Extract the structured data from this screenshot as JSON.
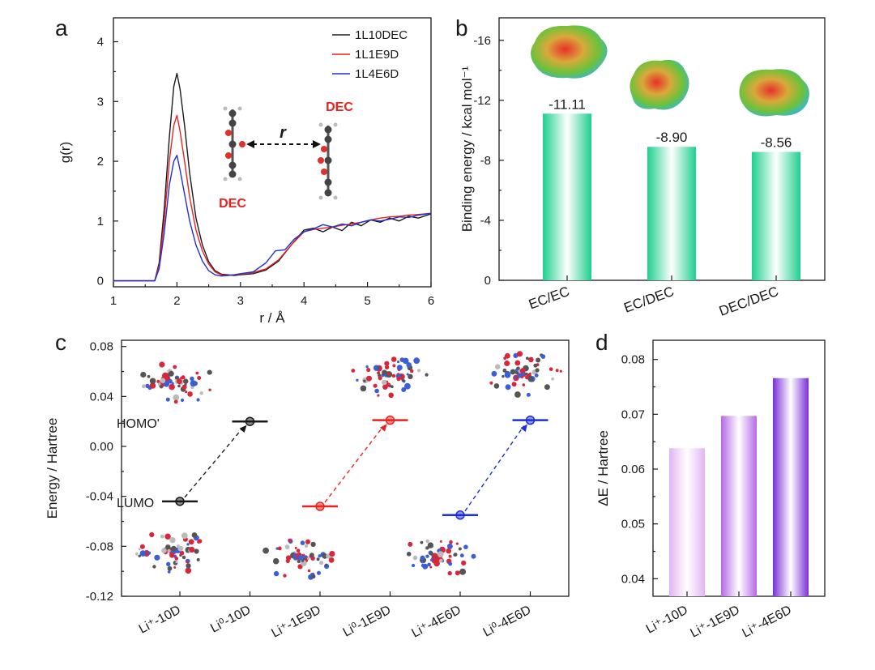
{
  "panels": {
    "a": "a",
    "b": "b",
    "c": "c",
    "d": "d"
  },
  "chart_data": [
    {
      "panel": "a",
      "type": "line",
      "xlabel": "r / Å",
      "ylabel": "g(r)",
      "xlim": [
        1,
        6
      ],
      "ylim": [
        -0.1,
        4.4
      ],
      "xticks": [
        "1",
        "2",
        "3",
        "4",
        "5",
        "6"
      ],
      "yticks": [
        "0",
        "1",
        "2",
        "3",
        "4"
      ],
      "legend_position": "top-right",
      "annotations": {
        "mol_left": "DEC",
        "mol_right": "DEC",
        "r_label": "r"
      },
      "series": [
        {
          "name": "1L10DEC",
          "color": "#1a1a1a",
          "x": [
            1.0,
            1.65,
            1.72,
            1.8,
            1.88,
            1.95,
            2.0,
            2.05,
            2.12,
            2.2,
            2.3,
            2.4,
            2.5,
            2.6,
            2.7,
            2.8,
            2.9,
            3.0,
            3.2,
            3.4,
            3.6,
            3.8,
            4.0,
            4.15,
            4.3,
            4.45,
            4.6,
            4.75,
            4.9,
            5.05,
            5.2,
            5.35,
            5.5,
            5.65,
            5.8,
            6.0
          ],
          "y": [
            0.0,
            0.0,
            0.3,
            1.2,
            2.4,
            3.25,
            3.47,
            3.2,
            2.6,
            1.8,
            1.05,
            0.6,
            0.32,
            0.17,
            0.11,
            0.1,
            0.09,
            0.1,
            0.12,
            0.18,
            0.33,
            0.6,
            0.85,
            0.88,
            0.82,
            0.9,
            0.84,
            0.98,
            0.92,
            1.02,
            0.98,
            1.05,
            1.0,
            1.08,
            1.05,
            1.12
          ]
        },
        {
          "name": "1L1E9D",
          "color": "#e8231f",
          "x": [
            1.0,
            1.65,
            1.72,
            1.8,
            1.88,
            1.95,
            2.0,
            2.05,
            2.12,
            2.2,
            2.3,
            2.4,
            2.5,
            2.6,
            2.7,
            2.8,
            2.9,
            3.0,
            3.2,
            3.4,
            3.6,
            3.8,
            4.0,
            4.15,
            4.3,
            4.45,
            4.6,
            4.75,
            4.9,
            5.05,
            5.2,
            5.35,
            5.5,
            5.65,
            5.8,
            6.0
          ],
          "y": [
            0.0,
            0.0,
            0.25,
            1.0,
            2.0,
            2.6,
            2.77,
            2.5,
            2.0,
            1.4,
            0.85,
            0.5,
            0.28,
            0.15,
            0.1,
            0.09,
            0.1,
            0.11,
            0.14,
            0.2,
            0.35,
            0.6,
            0.82,
            0.86,
            0.88,
            0.9,
            0.93,
            0.95,
            0.98,
            1.02,
            1.05,
            1.07,
            1.08,
            1.1,
            1.11,
            1.13
          ]
        },
        {
          "name": "1L4E6D",
          "color": "#1f2fd8",
          "x": [
            1.0,
            1.65,
            1.72,
            1.8,
            1.88,
            1.95,
            2.0,
            2.05,
            2.12,
            2.2,
            2.3,
            2.4,
            2.5,
            2.6,
            2.7,
            2.8,
            2.9,
            3.0,
            3.2,
            3.4,
            3.55,
            3.7,
            3.85,
            4.0,
            4.15,
            4.3,
            4.45,
            4.6,
            4.75,
            4.9,
            5.05,
            5.2,
            5.35,
            5.5,
            5.65,
            5.8,
            6.0
          ],
          "y": [
            0.0,
            0.0,
            0.2,
            0.8,
            1.6,
            2.0,
            2.1,
            1.85,
            1.45,
            1.0,
            0.6,
            0.33,
            0.17,
            0.1,
            0.08,
            0.09,
            0.1,
            0.12,
            0.15,
            0.3,
            0.5,
            0.52,
            0.7,
            0.82,
            0.87,
            0.94,
            0.9,
            0.95,
            0.92,
            0.98,
            1.02,
            1.0,
            1.03,
            1.07,
            1.06,
            1.1,
            1.13
          ]
        }
      ]
    },
    {
      "panel": "b",
      "type": "bar",
      "ylabel": "Binding energy /  kcal mol⁻¹",
      "categories": [
        "EC/EC",
        "EC/DEC",
        "DEC/DEC"
      ],
      "values": [
        -11.11,
        -8.9,
        -8.56
      ],
      "data_labels": [
        "-11.11",
        "-8.90",
        "-8.56"
      ],
      "ylim": [
        0,
        -17.5
      ],
      "yticks": [
        "0",
        "-4",
        "-8",
        "-12",
        "-16"
      ],
      "bar_color": "#1ecf8e"
    },
    {
      "panel": "c",
      "type": "scatter",
      "ylabel": "Energy / Hartree",
      "categories": [
        "Li⁺-10D",
        "Li⁰-10D",
        "Li⁺-1E9D",
        "Li⁰-1E9D",
        "Li⁺-4E6D",
        "Li⁰-4E6D"
      ],
      "ylim": [
        -0.12,
        0.085
      ],
      "yticks": [
        "0.08",
        "0.04",
        "0.00",
        "-0.04",
        "-0.08",
        "-0.12"
      ],
      "level_labels": {
        "lumo": "LUMO",
        "homo": "HOMO'"
      },
      "series": [
        {
          "system": "10D",
          "color": "#1a1a1a",
          "x_index": [
            0,
            1
          ],
          "y": [
            -0.044,
            0.02
          ]
        },
        {
          "system": "1E9D",
          "color": "#e8231f",
          "x_index": [
            2,
            3
          ],
          "y": [
            -0.048,
            0.021
          ]
        },
        {
          "system": "4E6D",
          "color": "#1f2fd8",
          "x_index": [
            4,
            5
          ],
          "y": [
            -0.055,
            0.021
          ]
        }
      ]
    },
    {
      "panel": "d",
      "type": "bar",
      "ylabel": "ΔE / Hartree",
      "categories": [
        "Li⁺-10D",
        "Li⁺-1E9D",
        "Li⁺-4E6D"
      ],
      "values": [
        0.0638,
        0.0697,
        0.0766
      ],
      "ylim": [
        0.0368,
        0.0835
      ],
      "yticks": [
        "0.04",
        "0.05",
        "0.06",
        "0.07",
        "0.08"
      ],
      "bar_colors": [
        "#e2b4f2",
        "#b46ae4",
        "#7a2fd8"
      ]
    }
  ]
}
